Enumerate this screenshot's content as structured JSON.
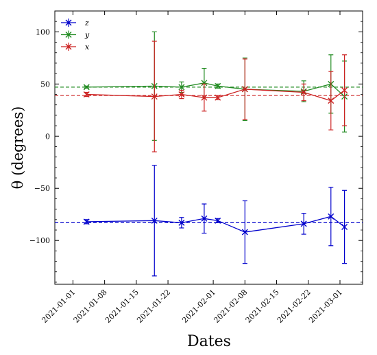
{
  "chart_data": {
    "type": "line",
    "xlabel": "Dates",
    "ylabel": "θ (degrees)",
    "ylim": [
      -142,
      120
    ],
    "x_ticks": [
      "2021-01-01",
      "2021-01-08",
      "2021-01-15",
      "2021-01-22",
      "2021-02-01",
      "2021-02-08",
      "2021-02-15",
      "2021-02-22",
      "2021-03-01"
    ],
    "y_ticks": [
      -100,
      -50,
      0,
      50,
      100
    ],
    "y_tick_labels": [
      "−100",
      "−50",
      "0",
      "50",
      "100"
    ],
    "grid": false,
    "legend": "top-left",
    "series": [
      {
        "name": "z",
        "color": "#0000cc",
        "mean": -83,
        "points": [
          {
            "x": "2021-01-04",
            "y": -82,
            "err": 2
          },
          {
            "x": "2021-01-19",
            "y": -81,
            "err": 53
          },
          {
            "x": "2021-01-25",
            "y": -83,
            "err": 5
          },
          {
            "x": "2021-01-30",
            "y": -79,
            "err": 14
          },
          {
            "x": "2021-02-02",
            "y": -81,
            "err": 2
          },
          {
            "x": "2021-02-08",
            "y": -92,
            "err": 30
          },
          {
            "x": "2021-02-21",
            "y": -84,
            "err": 10
          },
          {
            "x": "2021-02-27",
            "y": -77,
            "err": 28
          },
          {
            "x": "2021-03-02",
            "y": -87,
            "err": 35
          }
        ]
      },
      {
        "name": "y",
        "color": "#228b22",
        "mean": 47,
        "points": [
          {
            "x": "2021-01-04",
            "y": 47,
            "err": 1
          },
          {
            "x": "2021-01-19",
            "y": 48,
            "err": 52
          },
          {
            "x": "2021-01-25",
            "y": 47,
            "err": 5
          },
          {
            "x": "2021-01-30",
            "y": 51,
            "err": 14
          },
          {
            "x": "2021-02-02",
            "y": 48,
            "err": 2
          },
          {
            "x": "2021-02-08",
            "y": 45,
            "err": 30
          },
          {
            "x": "2021-02-21",
            "y": 43,
            "err": 10
          },
          {
            "x": "2021-02-27",
            "y": 50,
            "err": 28
          },
          {
            "x": "2021-03-02",
            "y": 38,
            "err": 34
          }
        ]
      },
      {
        "name": "x",
        "color": "#cc2222",
        "mean": 39,
        "points": [
          {
            "x": "2021-01-04",
            "y": 40,
            "err": 2
          },
          {
            "x": "2021-01-19",
            "y": 38,
            "err": 53
          },
          {
            "x": "2021-01-25",
            "y": 40,
            "err": 4
          },
          {
            "x": "2021-01-30",
            "y": 37,
            "err": 13
          },
          {
            "x": "2021-02-02",
            "y": 37,
            "err": 2
          },
          {
            "x": "2021-02-08",
            "y": 45,
            "err": 29
          },
          {
            "x": "2021-02-21",
            "y": 42,
            "err": 8
          },
          {
            "x": "2021-02-27",
            "y": 34,
            "err": 28
          },
          {
            "x": "2021-03-02",
            "y": 44,
            "err": 34
          }
        ]
      }
    ]
  }
}
